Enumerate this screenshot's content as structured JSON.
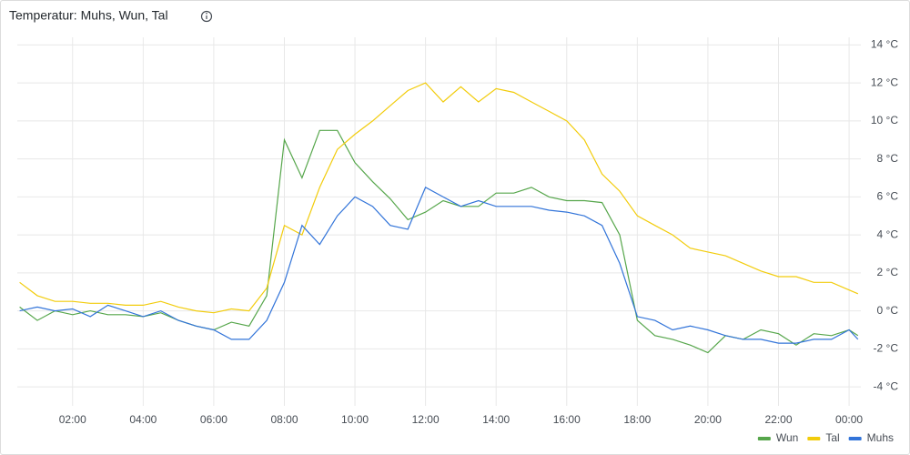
{
  "chart_data": {
    "type": "line",
    "title": "Temperatur: Muhs, Wun, Tal",
    "x": [
      "00:30",
      "01:00",
      "01:30",
      "02:00",
      "02:30",
      "03:00",
      "03:30",
      "04:00",
      "04:30",
      "05:00",
      "05:30",
      "06:00",
      "06:30",
      "07:00",
      "07:30",
      "08:00",
      "08:30",
      "09:00",
      "09:30",
      "10:00",
      "10:30",
      "11:00",
      "11:30",
      "12:00",
      "12:30",
      "13:00",
      "13:30",
      "14:00",
      "14:30",
      "15:00",
      "15:30",
      "16:00",
      "16:30",
      "17:00",
      "17:30",
      "18:00",
      "18:30",
      "19:00",
      "19:30",
      "20:00",
      "20:30",
      "21:00",
      "21:30",
      "22:00",
      "22:30",
      "23:00",
      "23:30",
      "00:00",
      "00:15"
    ],
    "series": [
      {
        "name": "Wun",
        "color": "#56a64b",
        "values": [
          0.2,
          -0.5,
          0,
          -0.2,
          0,
          -0.2,
          -0.2,
          -0.3,
          -0.1,
          -0.5,
          -0.8,
          -1,
          -0.6,
          -0.8,
          0.8,
          9,
          7,
          9.5,
          9.5,
          7.8,
          6.8,
          5.9,
          4.8,
          5.2,
          5.8,
          5.5,
          5.5,
          6.2,
          6.2,
          6.5,
          6,
          5.8,
          5.8,
          5.7,
          4,
          -0.5,
          -1.3,
          -1.5,
          -1.8,
          -2.2,
          -1.3,
          -1.5,
          -1,
          -1.2,
          -1.8,
          -1.2,
          -1.3,
          -1,
          -1.3
        ]
      },
      {
        "name": "Tal",
        "color": "#f2cc0c",
        "values": [
          1.5,
          0.8,
          0.5,
          0.5,
          0.4,
          0.4,
          0.3,
          0.3,
          0.5,
          0.2,
          0,
          -0.1,
          0.1,
          0,
          1.2,
          4.5,
          4,
          6.5,
          8.5,
          9.3,
          10,
          10.8,
          11.6,
          12,
          11,
          11.8,
          11,
          11.7,
          11.5,
          11,
          10.5,
          10,
          9,
          7.2,
          6.3,
          5,
          4.5,
          4,
          3.3,
          3.1,
          2.9,
          2.5,
          2.1,
          1.8,
          1.8,
          1.5,
          1.5,
          1.1,
          0.9
        ]
      },
      {
        "name": "Muhs",
        "color": "#3274d9",
        "values": [
          0,
          0.2,
          0,
          0.1,
          -0.3,
          0.3,
          0,
          -0.3,
          0,
          -0.5,
          -0.8,
          -1,
          -1.5,
          -1.5,
          -0.5,
          1.5,
          4.5,
          3.5,
          5,
          6,
          5.5,
          4.5,
          4.3,
          6.5,
          6,
          5.5,
          5.8,
          5.5,
          5.5,
          5.5,
          5.3,
          5.2,
          5,
          4.5,
          2.5,
          -0.3,
          -0.5,
          -1,
          -0.8,
          -1,
          -1.3,
          -1.5,
          -1.5,
          -1.7,
          -1.7,
          -1.5,
          -1.5,
          -1,
          -1.5
        ]
      }
    ],
    "xlim": [
      "00:26",
      "00:20"
    ],
    "xticks": [
      "02:00",
      "04:00",
      "06:00",
      "08:00",
      "10:00",
      "12:00",
      "14:00",
      "16:00",
      "18:00",
      "20:00",
      "22:00",
      "00:00"
    ],
    "ylim": [
      -5,
      14.4
    ],
    "yticks": [
      {
        "value": -4,
        "label": "-4 °C"
      },
      {
        "value": -2,
        "label": "-2 °C"
      },
      {
        "value": 0,
        "label": "0 °C"
      },
      {
        "value": 2,
        "label": "2 °C"
      },
      {
        "value": 4,
        "label": "4 °C"
      },
      {
        "value": 6,
        "label": "6 °C"
      },
      {
        "value": 8,
        "label": "8 °C"
      },
      {
        "value": 10,
        "label": "10 °C"
      },
      {
        "value": 12,
        "label": "12 °C"
      },
      {
        "value": 14,
        "label": "14 °C"
      }
    ],
    "grid": true
  }
}
